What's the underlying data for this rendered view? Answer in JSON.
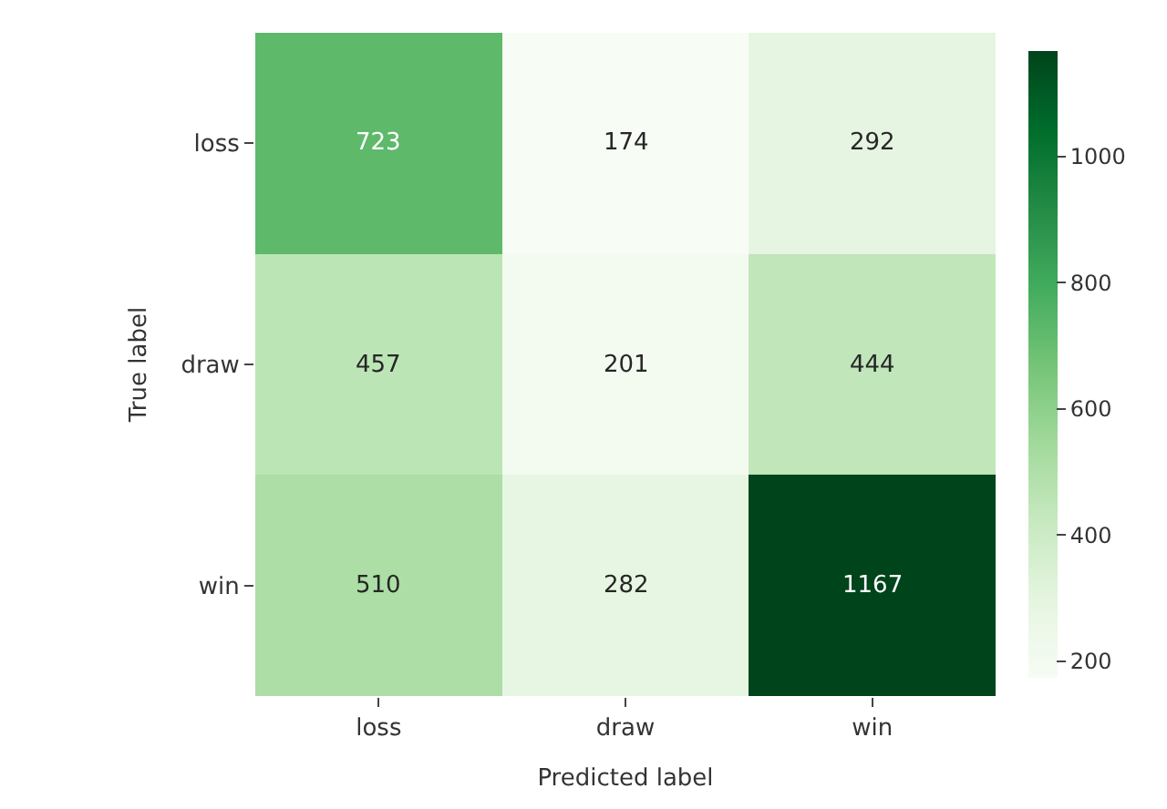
{
  "chart_data": {
    "type": "heatmap",
    "xlabel": "Predicted label",
    "ylabel": "True label",
    "categories": [
      "loss",
      "draw",
      "win"
    ],
    "y_categories": [
      "loss",
      "draw",
      "win"
    ],
    "cells": [
      [
        723,
        174,
        292
      ],
      [
        457,
        201,
        444
      ],
      [
        510,
        282,
        1167
      ]
    ],
    "clim": [
      174,
      1167
    ],
    "cticks": [
      200,
      400,
      600,
      800,
      1000
    ],
    "data_labels": true
  }
}
